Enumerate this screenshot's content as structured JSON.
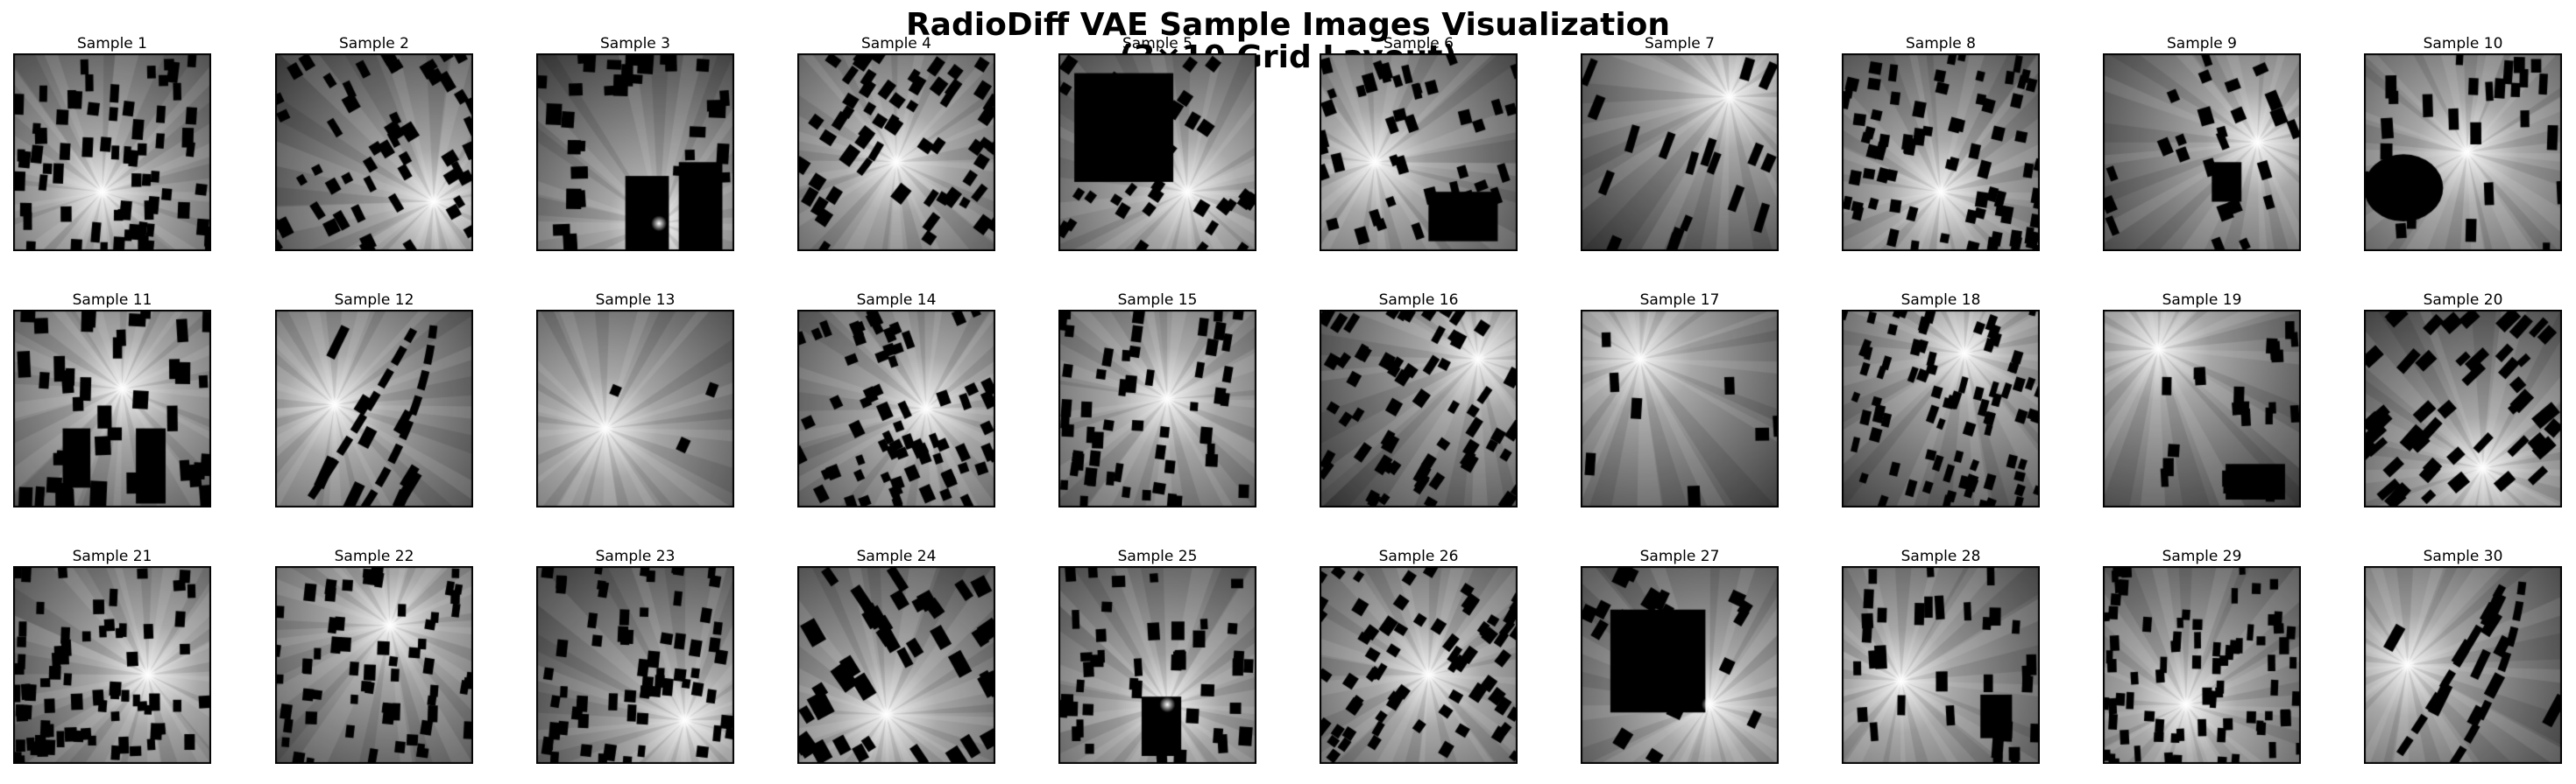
{
  "figure": {
    "title_line_1": "RadioDiff VAE Sample Images Visualization",
    "title_line_2": "(3×10 Grid Layout)"
  },
  "grid": {
    "rows": 3,
    "columns": 10
  },
  "samples": [
    {
      "label": "Sample 1"
    },
    {
      "label": "Sample 2"
    },
    {
      "label": "Sample 3"
    },
    {
      "label": "Sample 4"
    },
    {
      "label": "Sample 5"
    },
    {
      "label": "Sample 6"
    },
    {
      "label": "Sample 7"
    },
    {
      "label": "Sample 8"
    },
    {
      "label": "Sample 9"
    },
    {
      "label": "Sample 10"
    },
    {
      "label": "Sample 11"
    },
    {
      "label": "Sample 12"
    },
    {
      "label": "Sample 13"
    },
    {
      "label": "Sample 14"
    },
    {
      "label": "Sample 15"
    },
    {
      "label": "Sample 16"
    },
    {
      "label": "Sample 17"
    },
    {
      "label": "Sample 18"
    },
    {
      "label": "Sample 19"
    },
    {
      "label": "Sample 20"
    },
    {
      "label": "Sample 21"
    },
    {
      "label": "Sample 22"
    },
    {
      "label": "Sample 23"
    },
    {
      "label": "Sample 24"
    },
    {
      "label": "Sample 25"
    },
    {
      "label": "Sample 26"
    },
    {
      "label": "Sample 27"
    },
    {
      "label": "Sample 28"
    },
    {
      "label": "Sample 29"
    },
    {
      "label": "Sample 30"
    }
  ],
  "colors": {
    "background": "#ffffff",
    "text": "#000000",
    "frame": "#000000",
    "obstacle": "#000000",
    "field_low": "#2a2a2a",
    "field_high": "#ffffff"
  }
}
